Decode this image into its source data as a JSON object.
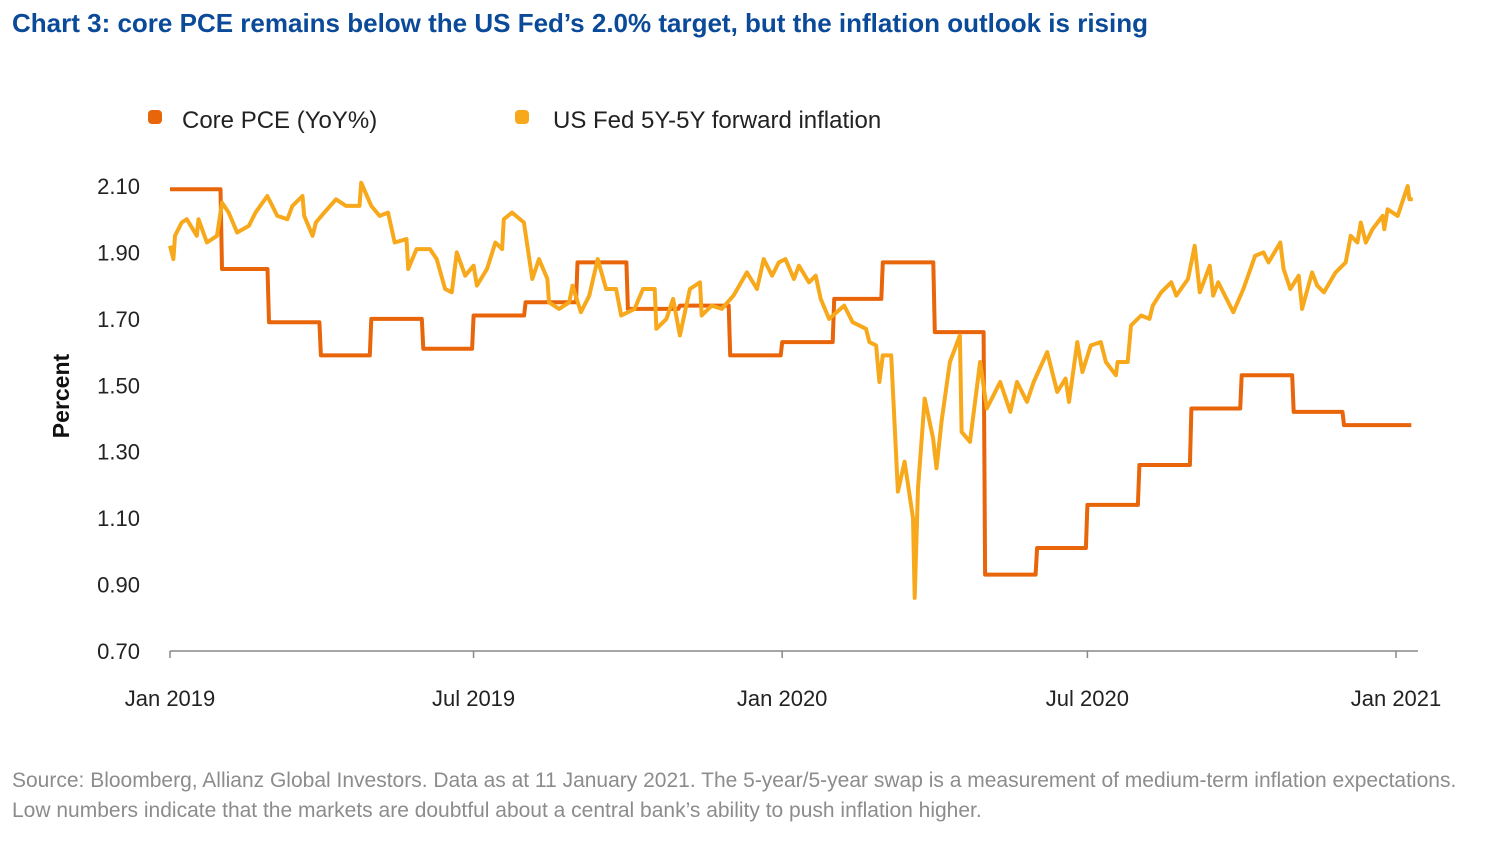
{
  "title": "Chart 3: core PCE remains below the US Fed’s 2.0% target, but the inflation outlook is rising",
  "footer": "Source: Bloomberg, Allianz Global Investors. Data as at 11 January 2021. The 5-year/5-year swap is a measurement of medium-term inflation expectations. Low numbers indicate that the markets are doubtful about a central bank’s ability to push inflation higher.",
  "chart_data": {
    "type": "line",
    "title": "Chart 3: core PCE remains below the US Fed’s 2.0% target, but the inflation outlook is rising",
    "xlabel": "",
    "ylabel": "Percent",
    "ylim": [
      0.7,
      2.1
    ],
    "yticks": [
      "2.10",
      "1.90",
      "1.70",
      "1.50",
      "1.30",
      "1.10",
      "0.90",
      "0.70"
    ],
    "xlim": [
      "2019-01-01",
      "2021-01-11"
    ],
    "xticks": [
      {
        "date": "2019-01-01",
        "label": "Jan 2019"
      },
      {
        "date": "2019-07-01",
        "label": "Jul 2019"
      },
      {
        "date": "2020-01-01",
        "label": "Jan 2020"
      },
      {
        "date": "2020-07-01",
        "label": "Jul 2020"
      },
      {
        "date": "2021-01-01",
        "label": "Jan 2021"
      }
    ],
    "grid": false,
    "legend_position": "top-left",
    "series": [
      {
        "name": "Core PCE (YoY%)",
        "color": "#E8650A",
        "style": "step",
        "end_date": "2021-01-11",
        "points": [
          {
            "date": "2019-01-01",
            "value": 2.09
          },
          {
            "date": "2019-02-01",
            "value": 1.85
          },
          {
            "date": "2019-03-01",
            "value": 1.69
          },
          {
            "date": "2019-04-01",
            "value": 1.59
          },
          {
            "date": "2019-05-01",
            "value": 1.7
          },
          {
            "date": "2019-06-01",
            "value": 1.61
          },
          {
            "date": "2019-07-01",
            "value": 1.71
          },
          {
            "date": "2019-08-01",
            "value": 1.75
          },
          {
            "date": "2019-09-01",
            "value": 1.87
          },
          {
            "date": "2019-10-01",
            "value": 1.73
          },
          {
            "date": "2019-11-01",
            "value": 1.74
          },
          {
            "date": "2019-12-01",
            "value": 1.59
          },
          {
            "date": "2020-01-01",
            "value": 1.63
          },
          {
            "date": "2020-02-01",
            "value": 1.76
          },
          {
            "date": "2020-03-01",
            "value": 1.87
          },
          {
            "date": "2020-04-01",
            "value": 1.66
          },
          {
            "date": "2020-05-01",
            "value": 0.93
          },
          {
            "date": "2020-06-01",
            "value": 1.01
          },
          {
            "date": "2020-07-01",
            "value": 1.14
          },
          {
            "date": "2020-08-01",
            "value": 1.26
          },
          {
            "date": "2020-09-01",
            "value": 1.43
          },
          {
            "date": "2020-10-01",
            "value": 1.53
          },
          {
            "date": "2020-11-01",
            "value": 1.42
          },
          {
            "date": "2020-12-01",
            "value": 1.38
          }
        ]
      },
      {
        "name": "US Fed 5Y-5Y forward inflation",
        "color": "#F7A81B",
        "style": "line",
        "points": [
          [
            "2019-01-01",
            1.92
          ],
          [
            "2019-01-03",
            1.88
          ],
          [
            "2019-01-04",
            1.95
          ],
          [
            "2019-01-08",
            1.99
          ],
          [
            "2019-01-11",
            2.0
          ],
          [
            "2019-01-17",
            1.95
          ],
          [
            "2019-01-18",
            2.0
          ],
          [
            "2019-01-23",
            1.93
          ],
          [
            "2019-01-29",
            1.95
          ],
          [
            "2019-02-01",
            2.05
          ],
          [
            "2019-02-05",
            2.02
          ],
          [
            "2019-02-10",
            1.96
          ],
          [
            "2019-02-17",
            1.98
          ],
          [
            "2019-02-21",
            2.02
          ],
          [
            "2019-02-28",
            2.07
          ],
          [
            "2019-03-06",
            2.01
          ],
          [
            "2019-03-12",
            2.0
          ],
          [
            "2019-03-15",
            2.04
          ],
          [
            "2019-03-21",
            2.07
          ],
          [
            "2019-03-22",
            2.01
          ],
          [
            "2019-03-27",
            1.95
          ],
          [
            "2019-03-29",
            1.99
          ],
          [
            "2019-04-03",
            2.02
          ],
          [
            "2019-04-10",
            2.06
          ],
          [
            "2019-04-16",
            2.04
          ],
          [
            "2019-04-24",
            2.04
          ],
          [
            "2019-04-25",
            2.11
          ],
          [
            "2019-05-01",
            2.04
          ],
          [
            "2019-05-06",
            2.01
          ],
          [
            "2019-05-11",
            2.02
          ],
          [
            "2019-05-15",
            1.93
          ],
          [
            "2019-05-22",
            1.94
          ],
          [
            "2019-05-23",
            1.85
          ],
          [
            "2019-05-28",
            1.91
          ],
          [
            "2019-06-05",
            1.91
          ],
          [
            "2019-06-09",
            1.88
          ],
          [
            "2019-06-14",
            1.79
          ],
          [
            "2019-06-18",
            1.78
          ],
          [
            "2019-06-21",
            1.9
          ],
          [
            "2019-06-26",
            1.83
          ],
          [
            "2019-07-01",
            1.86
          ],
          [
            "2019-07-03",
            1.8
          ],
          [
            "2019-07-09",
            1.85
          ],
          [
            "2019-07-14",
            1.93
          ],
          [
            "2019-07-18",
            1.91
          ],
          [
            "2019-07-19",
            2.0
          ],
          [
            "2019-07-24",
            2.02
          ],
          [
            "2019-07-31",
            1.99
          ],
          [
            "2019-08-05",
            1.82
          ],
          [
            "2019-08-09",
            1.88
          ],
          [
            "2019-08-14",
            1.82
          ],
          [
            "2019-08-15",
            1.75
          ],
          [
            "2019-08-21",
            1.73
          ],
          [
            "2019-08-27",
            1.75
          ],
          [
            "2019-08-29",
            1.8
          ],
          [
            "2019-09-03",
            1.72
          ],
          [
            "2019-09-08",
            1.77
          ],
          [
            "2019-09-13",
            1.88
          ],
          [
            "2019-09-18",
            1.79
          ],
          [
            "2019-09-24",
            1.79
          ],
          [
            "2019-09-27",
            1.71
          ],
          [
            "2019-10-05",
            1.73
          ],
          [
            "2019-10-10",
            1.79
          ],
          [
            "2019-10-17",
            1.79
          ],
          [
            "2019-10-18",
            1.67
          ],
          [
            "2019-10-24",
            1.7
          ],
          [
            "2019-10-28",
            1.76
          ],
          [
            "2019-11-01",
            1.65
          ],
          [
            "2019-11-07",
            1.79
          ],
          [
            "2019-11-13",
            1.81
          ],
          [
            "2019-11-14",
            1.71
          ],
          [
            "2019-11-20",
            1.74
          ],
          [
            "2019-11-26",
            1.73
          ],
          [
            "2019-12-03",
            1.77
          ],
          [
            "2019-12-11",
            1.84
          ],
          [
            "2019-12-17",
            1.79
          ],
          [
            "2019-12-21",
            1.88
          ],
          [
            "2019-12-26",
            1.83
          ],
          [
            "2019-12-30",
            1.87
          ],
          [
            "2020-01-03",
            1.88
          ],
          [
            "2020-01-08",
            1.82
          ],
          [
            "2020-01-11",
            1.86
          ],
          [
            "2020-01-17",
            1.81
          ],
          [
            "2020-01-21",
            1.83
          ],
          [
            "2020-01-24",
            1.76
          ],
          [
            "2020-01-29",
            1.7
          ],
          [
            "2020-02-07",
            1.74
          ],
          [
            "2020-02-12",
            1.69
          ],
          [
            "2020-02-20",
            1.67
          ],
          [
            "2020-02-22",
            1.63
          ],
          [
            "2020-02-26",
            1.62
          ],
          [
            "2020-02-28",
            1.51
          ],
          [
            "2020-03-01",
            1.59
          ],
          [
            "2020-03-06",
            1.59
          ],
          [
            "2020-03-10",
            1.18
          ],
          [
            "2020-03-14",
            1.27
          ],
          [
            "2020-03-19",
            1.1
          ],
          [
            "2020-03-20",
            0.86
          ],
          [
            "2020-03-22",
            1.19
          ],
          [
            "2020-03-26",
            1.46
          ],
          [
            "2020-03-31",
            1.34
          ],
          [
            "2020-04-02",
            1.25
          ],
          [
            "2020-04-05",
            1.39
          ],
          [
            "2020-04-10",
            1.57
          ],
          [
            "2020-04-16",
            1.65
          ],
          [
            "2020-04-17",
            1.36
          ],
          [
            "2020-04-22",
            1.33
          ],
          [
            "2020-04-28",
            1.57
          ],
          [
            "2020-05-02",
            1.43
          ],
          [
            "2020-05-10",
            1.51
          ],
          [
            "2020-05-16",
            1.42
          ],
          [
            "2020-05-20",
            1.51
          ],
          [
            "2020-05-26",
            1.45
          ],
          [
            "2020-05-30",
            1.51
          ],
          [
            "2020-06-07",
            1.6
          ],
          [
            "2020-06-13",
            1.48
          ],
          [
            "2020-06-18",
            1.52
          ],
          [
            "2020-06-20",
            1.45
          ],
          [
            "2020-06-25",
            1.63
          ],
          [
            "2020-06-28",
            1.54
          ],
          [
            "2020-07-03",
            1.62
          ],
          [
            "2020-07-09",
            1.63
          ],
          [
            "2020-07-12",
            1.57
          ],
          [
            "2020-07-18",
            1.53
          ],
          [
            "2020-07-19",
            1.57
          ],
          [
            "2020-07-25",
            1.57
          ],
          [
            "2020-07-27",
            1.68
          ],
          [
            "2020-08-02",
            1.71
          ],
          [
            "2020-08-07",
            1.7
          ],
          [
            "2020-08-09",
            1.74
          ],
          [
            "2020-08-14",
            1.78
          ],
          [
            "2020-08-20",
            1.81
          ],
          [
            "2020-08-23",
            1.77
          ],
          [
            "2020-08-30",
            1.82
          ],
          [
            "2020-09-03",
            1.92
          ],
          [
            "2020-09-06",
            1.78
          ],
          [
            "2020-09-12",
            1.86
          ],
          [
            "2020-09-14",
            1.77
          ],
          [
            "2020-09-17",
            1.81
          ],
          [
            "2020-09-26",
            1.72
          ],
          [
            "2020-10-02",
            1.79
          ],
          [
            "2020-10-09",
            1.89
          ],
          [
            "2020-10-14",
            1.9
          ],
          [
            "2020-10-17",
            1.87
          ],
          [
            "2020-10-24",
            1.93
          ],
          [
            "2020-10-26",
            1.85
          ],
          [
            "2020-10-30",
            1.79
          ],
          [
            "2020-11-04",
            1.83
          ],
          [
            "2020-11-06",
            1.73
          ],
          [
            "2020-11-12",
            1.84
          ],
          [
            "2020-11-15",
            1.8
          ],
          [
            "2020-11-19",
            1.78
          ],
          [
            "2020-11-26",
            1.84
          ],
          [
            "2020-12-02",
            1.87
          ],
          [
            "2020-12-05",
            1.95
          ],
          [
            "2020-12-09",
            1.93
          ],
          [
            "2020-12-11",
            1.99
          ],
          [
            "2020-12-14",
            1.93
          ],
          [
            "2020-12-18",
            1.97
          ],
          [
            "2020-12-24",
            2.01
          ],
          [
            "2020-12-25",
            1.97
          ],
          [
            "2020-12-27",
            2.03
          ],
          [
            "2021-01-02",
            2.01
          ],
          [
            "2021-01-04",
            2.04
          ],
          [
            "2021-01-08",
            2.1
          ],
          [
            "2021-01-09",
            2.06
          ],
          [
            "2021-01-11",
            2.06
          ]
        ]
      }
    ]
  }
}
